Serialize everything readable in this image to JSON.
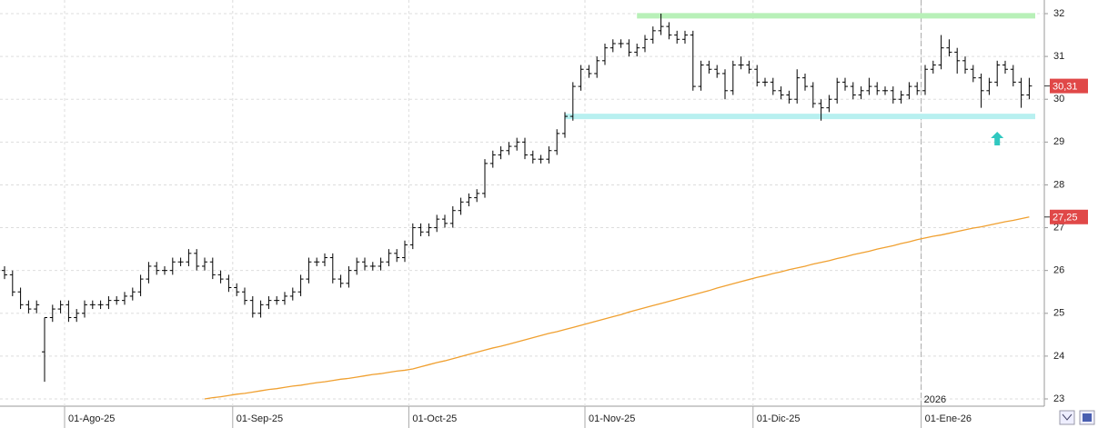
{
  "chart_data": {
    "type": "ohlc",
    "categories": [
      null,
      null,
      null,
      null,
      null,
      null,
      null,
      null,
      "01-Ago-25",
      null,
      null,
      null,
      null,
      null,
      null,
      null,
      null,
      null,
      null,
      null,
      null,
      null,
      null,
      null,
      null,
      null,
      null,
      null,
      null,
      "01-Sep-25",
      null,
      null,
      null,
      null,
      null,
      null,
      null,
      null,
      null,
      null,
      null,
      null,
      null,
      null,
      null,
      null,
      null,
      null,
      null,
      null,
      null,
      "01-Oct-25",
      null,
      null,
      null,
      null,
      null,
      null,
      null,
      null,
      null,
      null,
      null,
      null,
      null,
      null,
      null,
      null,
      null,
      null,
      null,
      null,
      null,
      "01-Nov-25",
      null,
      null,
      null,
      null,
      null,
      null,
      null,
      null,
      null,
      null,
      null,
      null,
      null,
      null,
      null,
      null,
      null,
      null,
      null,
      null,
      "01-Dic-25",
      null,
      null,
      null,
      null,
      null,
      null,
      null,
      null,
      null,
      null,
      null,
      null,
      null,
      null,
      null,
      null,
      null,
      null,
      null,
      null,
      "01-Ene-26",
      null,
      null,
      null,
      null,
      null,
      null,
      null,
      null,
      null,
      null,
      null,
      null,
      null
    ],
    "open": [
      26.0,
      25.9,
      25.5,
      25.2,
      25.1,
      24.1,
      24.9,
      25.1,
      25.2,
      24.9,
      25.0,
      25.2,
      25.2,
      25.2,
      25.3,
      25.3,
      25.4,
      25.5,
      25.8,
      26.1,
      26.0,
      26.0,
      26.2,
      26.2,
      26.4,
      26.1,
      26.2,
      25.9,
      25.8,
      25.6,
      25.5,
      25.3,
      25.0,
      25.2,
      25.3,
      25.3,
      25.4,
      25.5,
      25.8,
      26.2,
      26.2,
      26.3,
      25.8,
      25.7,
      26.0,
      26.2,
      26.1,
      26.1,
      26.2,
      26.4,
      26.3,
      26.6,
      27.0,
      26.9,
      27.0,
      27.2,
      27.1,
      27.4,
      27.6,
      27.7,
      27.8,
      28.5,
      28.7,
      28.8,
      28.9,
      29.0,
      28.7,
      28.6,
      28.6,
      28.8,
      29.2,
      29.6,
      30.3,
      30.7,
      30.6,
      30.9,
      31.2,
      31.3,
      31.3,
      31.1,
      31.2,
      31.4,
      31.6,
      31.7,
      31.5,
      31.4,
      31.5,
      30.3,
      30.8,
      30.7,
      30.6,
      30.2,
      30.8,
      30.8,
      30.7,
      30.4,
      30.4,
      30.2,
      30.1,
      30.0,
      30.5,
      30.3,
      29.9,
      29.8,
      30.0,
      30.4,
      30.3,
      30.1,
      30.2,
      30.3,
      30.2,
      30.2,
      30.0,
      30.1,
      30.3,
      30.2,
      30.7,
      30.8,
      31.2,
      31.1,
      30.9,
      30.7,
      30.5,
      30.2,
      30.4,
      30.8,
      30.7,
      30.4,
      30.1
    ],
    "high": [
      26.1,
      26.0,
      25.6,
      25.3,
      25.3,
      24.9,
      25.2,
      25.3,
      25.3,
      25.1,
      25.3,
      25.3,
      25.3,
      25.4,
      25.4,
      25.5,
      25.6,
      25.9,
      26.2,
      26.2,
      26.1,
      26.3,
      26.3,
      26.5,
      26.5,
      26.3,
      26.3,
      26.0,
      25.9,
      25.7,
      25.6,
      25.4,
      25.3,
      25.4,
      25.4,
      25.5,
      25.6,
      25.9,
      26.3,
      26.3,
      26.4,
      26.4,
      25.9,
      26.1,
      26.3,
      26.3,
      26.2,
      26.3,
      26.5,
      26.5,
      26.7,
      27.1,
      27.1,
      27.1,
      27.3,
      27.3,
      27.5,
      27.7,
      27.8,
      27.9,
      28.6,
      28.8,
      28.9,
      29.0,
      29.1,
      29.1,
      28.8,
      28.7,
      28.9,
      29.3,
      29.7,
      30.4,
      30.8,
      30.8,
      31.0,
      31.3,
      31.4,
      31.4,
      31.4,
      31.3,
      31.5,
      31.7,
      32.0,
      31.8,
      31.6,
      31.6,
      31.6,
      30.9,
      30.9,
      30.8,
      30.7,
      30.9,
      31.0,
      30.9,
      30.8,
      30.5,
      30.5,
      30.3,
      30.2,
      30.7,
      30.6,
      30.4,
      30.0,
      30.1,
      30.5,
      30.5,
      30.4,
      30.3,
      30.5,
      30.4,
      30.3,
      30.3,
      30.2,
      30.4,
      30.4,
      30.8,
      30.9,
      31.5,
      31.4,
      31.2,
      31.0,
      30.8,
      30.6,
      30.5,
      30.9,
      30.9,
      30.8,
      30.5,
      30.5
    ],
    "low": [
      25.8,
      25.4,
      25.1,
      25.0,
      25.0,
      23.4,
      24.8,
      25.0,
      24.8,
      24.8,
      24.9,
      25.1,
      25.1,
      25.1,
      25.2,
      25.2,
      25.3,
      25.4,
      25.7,
      25.9,
      25.9,
      25.9,
      26.1,
      26.1,
      26.0,
      26.0,
      25.8,
      25.7,
      25.5,
      25.4,
      25.2,
      24.9,
      24.9,
      25.1,
      25.2,
      25.2,
      25.3,
      25.4,
      25.7,
      26.1,
      26.1,
      25.7,
      25.6,
      25.6,
      25.9,
      26.0,
      26.0,
      26.0,
      26.1,
      26.2,
      26.2,
      26.5,
      26.8,
      26.8,
      26.9,
      27.0,
      27.0,
      27.3,
      27.5,
      27.6,
      27.7,
      28.4,
      28.6,
      28.7,
      28.8,
      28.6,
      28.5,
      28.5,
      28.5,
      28.7,
      29.1,
      29.5,
      30.2,
      30.5,
      30.5,
      30.8,
      31.1,
      31.2,
      31.0,
      31.0,
      31.1,
      31.3,
      31.5,
      31.4,
      31.3,
      31.3,
      30.2,
      30.2,
      30.6,
      30.5,
      30.0,
      30.1,
      30.7,
      30.6,
      30.3,
      30.3,
      30.1,
      30.0,
      29.9,
      29.9,
      30.2,
      29.8,
      29.5,
      29.7,
      29.9,
      30.2,
      30.0,
      30.0,
      30.1,
      30.1,
      30.1,
      29.9,
      29.9,
      30.0,
      30.1,
      30.1,
      30.6,
      30.7,
      31.0,
      30.6,
      30.6,
      30.4,
      29.8,
      30.1,
      30.3,
      30.6,
      30.3,
      29.8,
      30.0
    ],
    "close": [
      25.9,
      25.5,
      25.2,
      25.1,
      25.2,
      24.9,
      25.1,
      25.2,
      24.9,
      25.0,
      25.2,
      25.2,
      25.2,
      25.3,
      25.3,
      25.4,
      25.5,
      25.8,
      26.1,
      26.0,
      26.0,
      26.2,
      26.2,
      26.4,
      26.1,
      26.2,
      25.9,
      25.8,
      25.6,
      25.5,
      25.3,
      25.0,
      25.2,
      25.3,
      25.3,
      25.4,
      25.5,
      25.8,
      26.2,
      26.2,
      26.3,
      25.8,
      25.7,
      26.0,
      26.2,
      26.1,
      26.1,
      26.2,
      26.4,
      26.3,
      26.6,
      27.0,
      26.9,
      27.0,
      27.2,
      27.1,
      27.4,
      27.6,
      27.7,
      27.8,
      28.5,
      28.7,
      28.8,
      28.9,
      29.0,
      28.7,
      28.6,
      28.6,
      28.8,
      29.2,
      29.6,
      30.3,
      30.7,
      30.6,
      30.9,
      31.2,
      31.3,
      31.3,
      31.1,
      31.2,
      31.4,
      31.6,
      31.7,
      31.5,
      31.4,
      31.5,
      30.3,
      30.8,
      30.7,
      30.6,
      30.2,
      30.8,
      30.8,
      30.7,
      30.4,
      30.4,
      30.2,
      30.1,
      30.0,
      30.5,
      30.3,
      29.9,
      29.8,
      30.0,
      30.4,
      30.3,
      30.1,
      30.2,
      30.3,
      30.2,
      30.2,
      30.0,
      30.1,
      30.3,
      30.2,
      30.7,
      30.8,
      31.2,
      31.1,
      30.9,
      30.7,
      30.5,
      30.2,
      30.4,
      30.8,
      30.7,
      30.4,
      30.1,
      30.31
    ],
    "bar_color": "#000000",
    "moving_average": {
      "color": "#f0a030",
      "values": [
        null,
        null,
        null,
        null,
        null,
        null,
        null,
        null,
        null,
        null,
        null,
        null,
        null,
        null,
        null,
        null,
        null,
        null,
        null,
        null,
        null,
        null,
        null,
        null,
        null,
        23.0,
        23.03,
        23.05,
        23.08,
        23.11,
        23.13,
        23.16,
        23.19,
        23.22,
        23.24,
        23.27,
        23.3,
        23.32,
        23.35,
        23.38,
        23.4,
        23.43,
        23.46,
        23.48,
        23.51,
        23.54,
        23.57,
        23.59,
        23.62,
        23.65,
        23.67,
        23.7,
        23.75,
        23.8,
        23.85,
        23.89,
        23.94,
        23.99,
        24.04,
        24.09,
        24.14,
        24.19,
        24.23,
        24.28,
        24.33,
        24.38,
        24.43,
        24.48,
        24.53,
        24.57,
        24.62,
        24.67,
        24.72,
        24.77,
        24.82,
        24.87,
        24.92,
        24.97,
        25.03,
        25.08,
        25.13,
        25.18,
        25.23,
        25.28,
        25.33,
        25.38,
        25.43,
        25.48,
        25.53,
        25.59,
        25.64,
        25.69,
        25.74,
        25.79,
        25.84,
        25.88,
        25.93,
        25.97,
        26.02,
        26.06,
        26.1,
        26.15,
        26.19,
        26.23,
        26.28,
        26.32,
        26.37,
        26.41,
        26.45,
        26.5,
        26.54,
        26.58,
        26.63,
        26.67,
        26.72,
        26.76,
        26.8,
        26.83,
        26.87,
        26.91,
        26.95,
        26.99,
        27.02,
        27.06,
        27.1,
        27.14,
        27.17,
        27.21,
        27.25
      ]
    },
    "levels": [
      {
        "value": 31.95,
        "color": "#b8f0b8"
      },
      {
        "value": 29.6,
        "color": "#b8f0f0"
      }
    ],
    "signal": {
      "value": 29.05,
      "color": "#30c8c0"
    },
    "price_labels": [
      {
        "value": 30.31,
        "label": "30,31",
        "color": "#e04848"
      },
      {
        "value": 27.25,
        "label": "27,25",
        "color": "#e04848"
      }
    ],
    "year_marker": "2026",
    "ylim": [
      23,
      32
    ],
    "yticks": [
      23,
      24,
      25,
      26,
      27,
      28,
      29,
      30,
      31,
      32
    ],
    "grid": true
  }
}
